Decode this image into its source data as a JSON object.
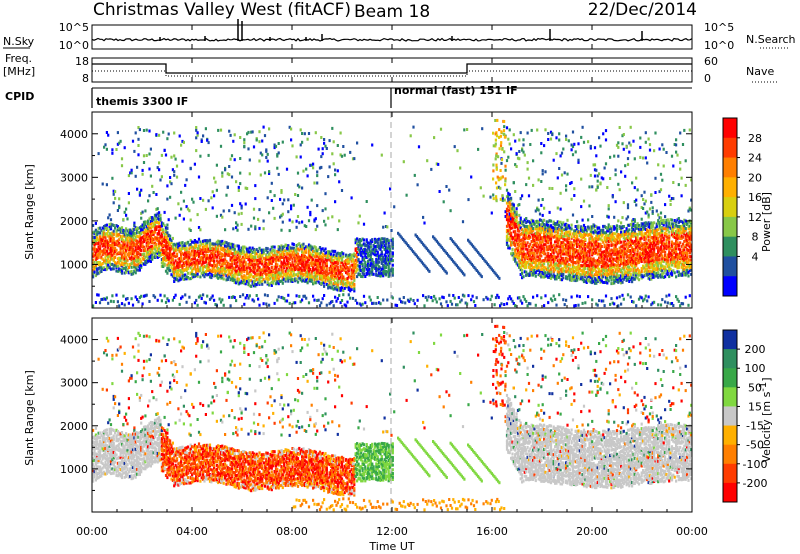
{
  "header": {
    "station": "Christmas Valley West (fitACF)",
    "beam": "Beam 18",
    "date": "22/Dec/2014"
  },
  "sky_panel": {
    "left_label": "N.Sky",
    "left_ticks": [
      "10^5",
      "10^0"
    ],
    "right_ticks": [
      "10^5",
      "10^0"
    ],
    "right_label": "N.Search"
  },
  "freq_panel": {
    "left_label_1": "Freq.",
    "left_label_2": "[MHz]",
    "left_ticks": [
      "18",
      "8"
    ],
    "right_ticks": [
      "60",
      "0"
    ],
    "right_label": "Nave"
  },
  "cpid": {
    "label": "CPID",
    "modes": [
      "themis 3300 IF",
      "normal (fast) 151 IF"
    ]
  },
  "x_axis": {
    "label": "Time UT",
    "ticks": [
      "00:00",
      "04:00",
      "08:00",
      "12:00",
      "16:00",
      "20:00",
      "00:00"
    ]
  },
  "chart_data": [
    {
      "type": "heatmap",
      "name": "power",
      "x_unit": "hours UT",
      "xlim": [
        0,
        24
      ],
      "ylabel": "Slant Range [km]",
      "ylim": [
        0,
        4500
      ],
      "yticks": [
        1000,
        2000,
        3000,
        4000
      ],
      "colorbar_label": "Power [dB]",
      "colorbar_ticks": [
        "28",
        "24",
        "20",
        "16",
        "12",
        "8",
        "4"
      ],
      "colorbar_colors": [
        "#ff0000",
        "#ff3c00",
        "#ff7f00",
        "#ffb000",
        "#d8cf10",
        "#88c848",
        "#2f8f5f",
        "#2050a0",
        "#0000ff"
      ],
      "mode_change_hours": [
        2.75,
        12.0,
        15.0
      ]
    },
    {
      "type": "heatmap",
      "name": "velocity",
      "x_unit": "hours UT",
      "xlim": [
        0,
        24
      ],
      "ylabel": "Slant Range [km]",
      "ylim": [
        0,
        4500
      ],
      "yticks": [
        1000,
        2000,
        3000,
        4000
      ],
      "colorbar_label": "Velocity [m s",
      "colorbar_label_sup": "-1",
      "colorbar_ticks": [
        "200",
        "100",
        "50",
        "15",
        "-15",
        "-50",
        "-100",
        "-200"
      ],
      "colorbar_colors": [
        "#1030a0",
        "#2f8f5f",
        "#38a848",
        "#80d840",
        "#c8c8c8",
        "#ffb000",
        "#ff7f00",
        "#ff3c00",
        "#ff0000"
      ]
    }
  ]
}
